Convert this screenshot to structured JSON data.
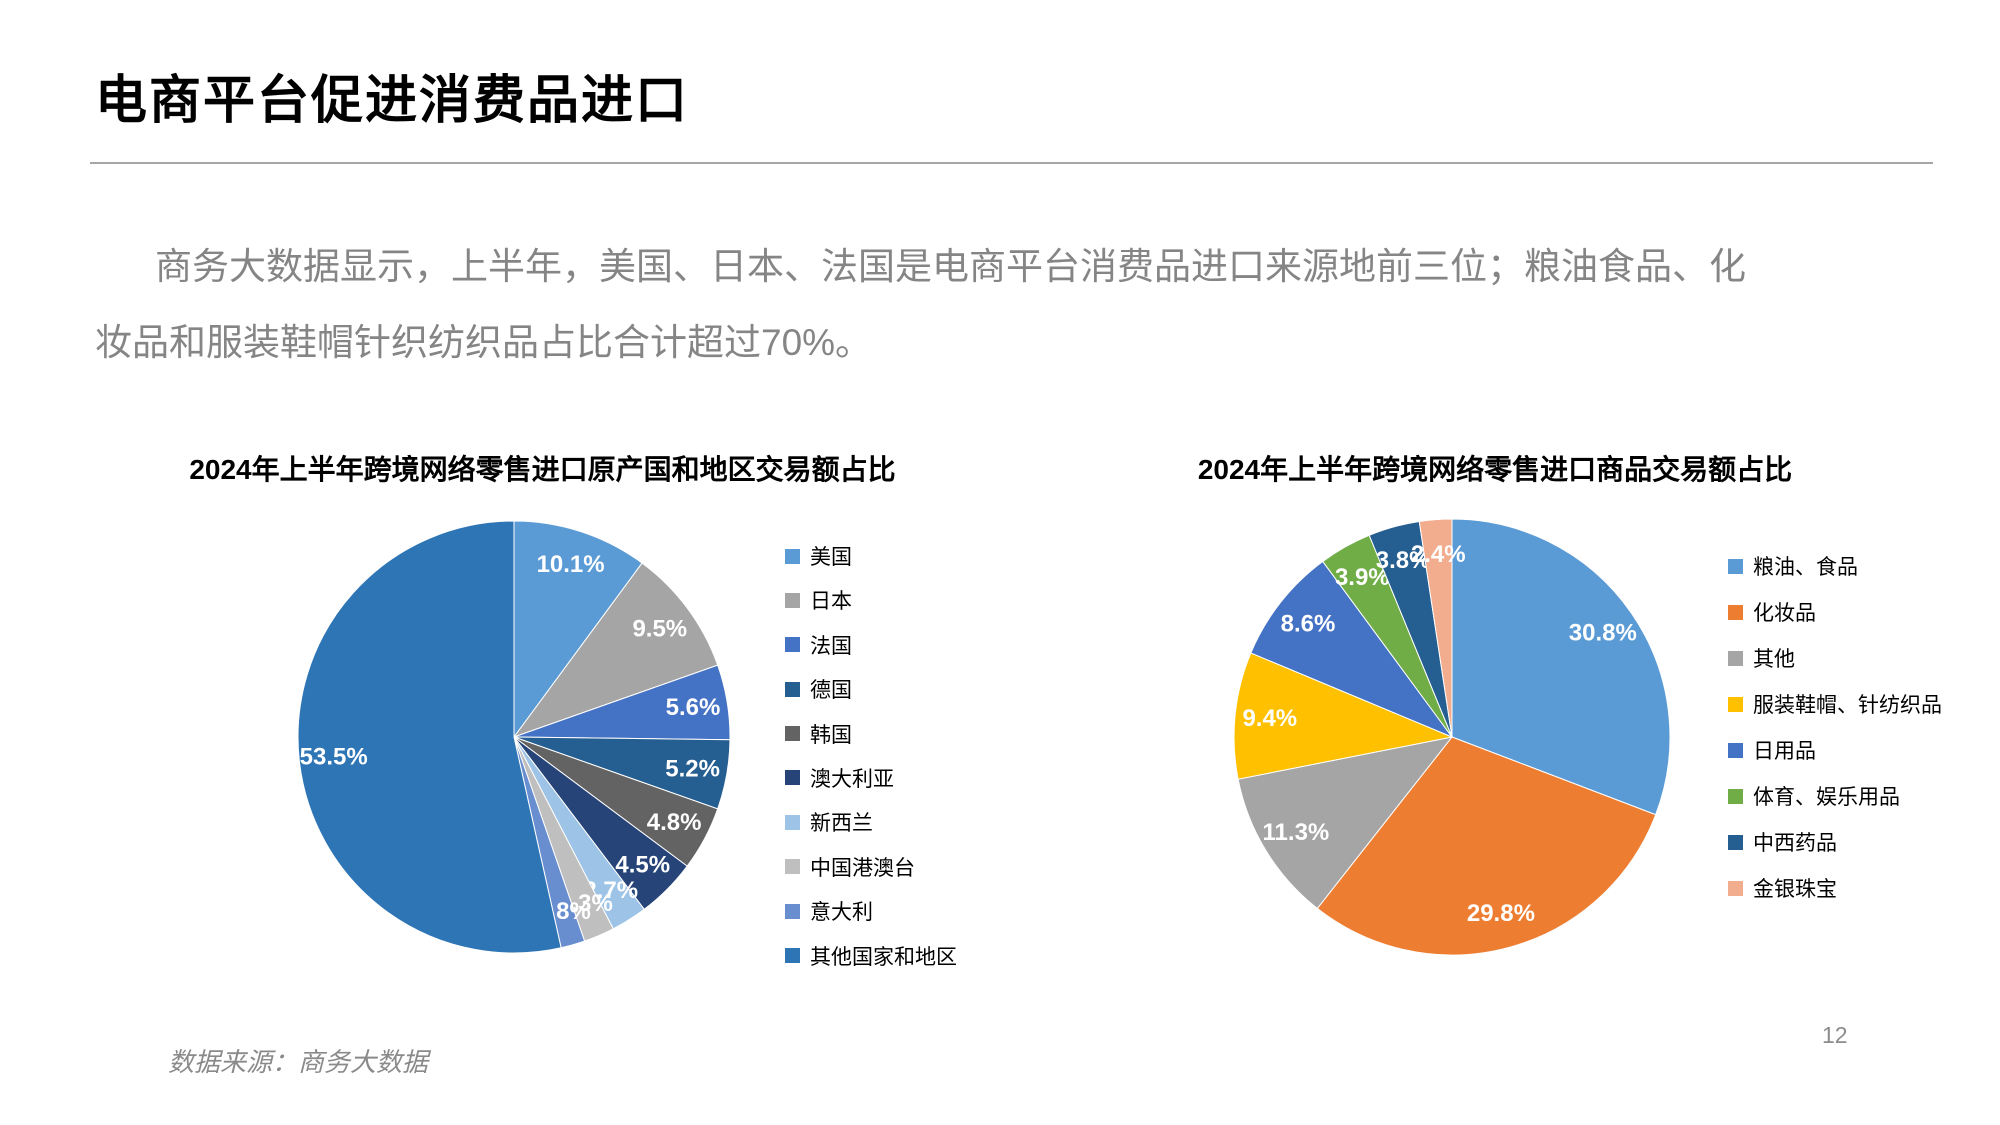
{
  "slide": {
    "title": "电商平台促进消费品进口",
    "paragraph_lines": [
      "商务大数据显示，上半年，美国、日本、法国是电商平台消费品进口来源地前三位；粮油食品、化",
      "妆品和服装鞋帽针织纺织品占比合计超过70%。"
    ],
    "data_source": "数据来源：商务大数据",
    "page_number": "12"
  },
  "chart_data": [
    {
      "type": "pie",
      "title": "2024年上半年跨境网络零售进口原产国和地区交易额占比",
      "categories": [
        "美国",
        "日本",
        "法国",
        "德国",
        "韩国",
        "澳大利亚",
        "新西兰",
        "中国港澳台",
        "意大利",
        "其他国家和地区"
      ],
      "values": [
        10.1,
        9.5,
        5.6,
        5.2,
        4.8,
        4.5,
        2.7,
        2.3,
        1.8,
        53.5
      ],
      "colors": [
        "#5B9BD5",
        "#A5A5A5",
        "#4472C4",
        "#255E91",
        "#636363",
        "#264478",
        "#9DC3E6",
        "#BFBFBF",
        "#698ED0",
        "#2E75B6"
      ],
      "label_format": "percent_one_decimal",
      "label_color": "#FFFFFF",
      "start_angle_deg": 0,
      "direction": "clockwise",
      "legend_position": "right"
    },
    {
      "type": "pie",
      "title": "2024年上半年跨境网络零售进口商品交易额占比",
      "categories": [
        "粮油、食品",
        "化妆品",
        "其他",
        "服装鞋帽、针纺织品",
        "日用品",
        "体育、娱乐用品",
        "中西药品",
        "金银珠宝"
      ],
      "values": [
        30.8,
        29.8,
        11.3,
        9.4,
        8.6,
        3.9,
        3.8,
        2.4
      ],
      "colors": [
        "#5B9BD5",
        "#ED7D31",
        "#A5A5A5",
        "#FFC000",
        "#4472C4",
        "#70AD47",
        "#255E91",
        "#F2AC8E"
      ],
      "label_format": "percent_one_decimal",
      "label_color": "#FFFFFF",
      "start_angle_deg": 0,
      "direction": "clockwise",
      "legend_position": "right"
    }
  ]
}
